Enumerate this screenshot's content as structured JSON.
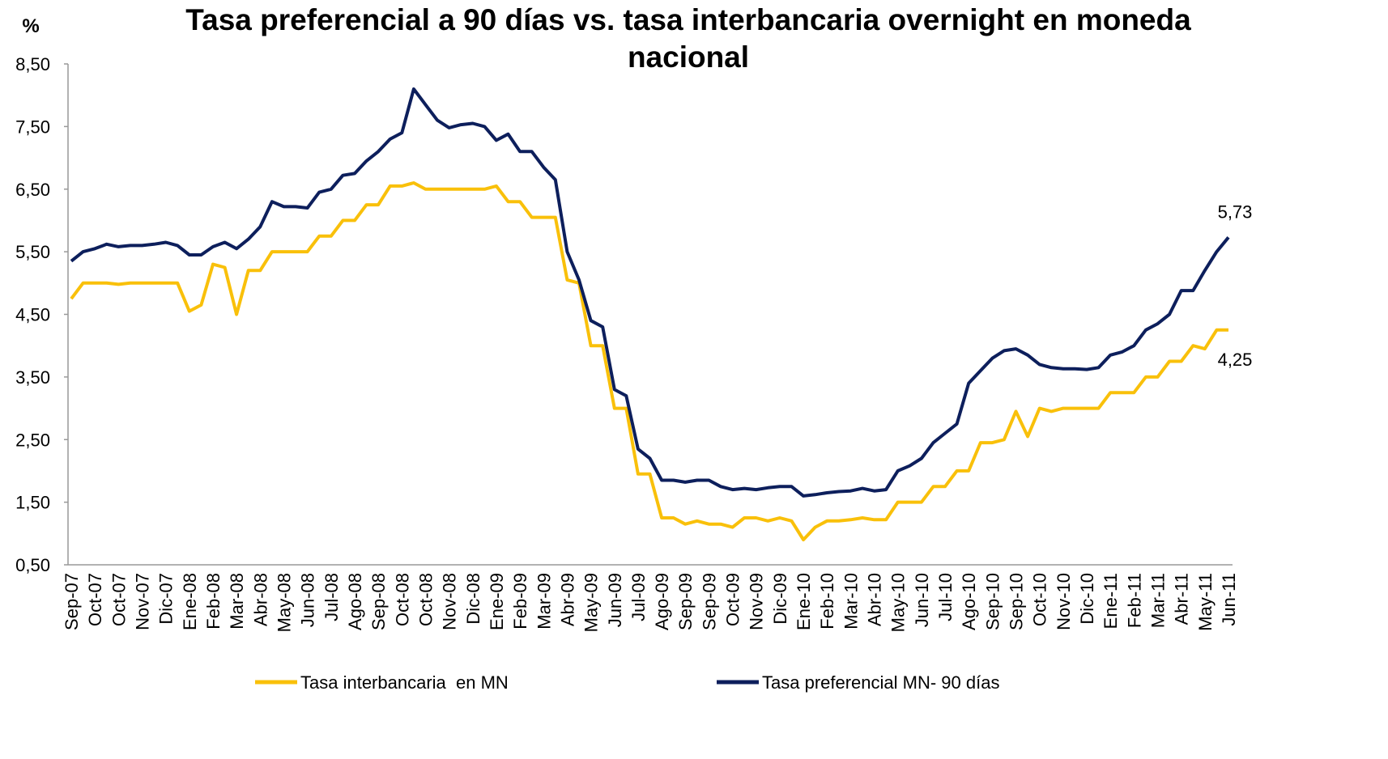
{
  "chart_data": {
    "type": "line",
    "title": "Tasa preferencial a 90 días vs. tasa interbancaria overnight en moneda nacional",
    "y_label": "%",
    "categories": [
      "Sep-07",
      null,
      "Oct-07",
      null,
      "Oct-07",
      null,
      "Nov-07",
      null,
      "Dic-07",
      null,
      "Ene-08",
      null,
      "Feb-08",
      null,
      "Mar-08",
      null,
      "Abr-08",
      null,
      "May-08",
      null,
      "Jun-08",
      null,
      "Jul-08",
      null,
      "Ago-08",
      null,
      "Sep-08",
      null,
      "Oct-08",
      null,
      "Oct-08",
      null,
      "Nov-08",
      null,
      "Dic-08",
      null,
      "Ene-09",
      null,
      "Feb-09",
      null,
      "Mar-09",
      null,
      "Abr-09",
      null,
      "May-09",
      null,
      "Jun-09",
      null,
      "Jul-09",
      null,
      "Ago-09",
      null,
      "Sep-09",
      null,
      "Sep-09",
      null,
      "Oct-09",
      null,
      "Nov-09",
      null,
      "Dic-09",
      null,
      "Ene-10",
      null,
      "Feb-10",
      null,
      "Mar-10",
      null,
      "Abr-10",
      null,
      "May-10",
      null,
      "Jun-10",
      null,
      "Jul-10",
      null,
      "Ago-10",
      null,
      "Sep-10",
      null,
      "Sep-10",
      null,
      "Oct-10",
      null,
      "Nov-10",
      null,
      "Dic-10",
      null,
      "Ene-11",
      null,
      "Feb-11",
      null,
      "Mar-11",
      null,
      "Abr-11",
      null,
      "May-11",
      null,
      "Jun-11"
    ],
    "series": [
      {
        "name": "Tasa interbancaria  en MN",
        "color": "#F9C00A",
        "values": [
          4.75,
          5.0,
          5.0,
          5.0,
          4.98,
          5.0,
          5.0,
          5.0,
          5.0,
          5.0,
          4.55,
          4.65,
          5.3,
          5.25,
          4.5,
          5.2,
          5.2,
          5.5,
          5.5,
          5.5,
          5.5,
          5.75,
          5.75,
          6.0,
          6.0,
          6.25,
          6.25,
          6.55,
          6.55,
          6.6,
          6.5,
          6.5,
          6.5,
          6.5,
          6.5,
          6.5,
          6.55,
          6.3,
          6.3,
          6.05,
          6.05,
          6.05,
          5.05,
          5.0,
          4.0,
          4.0,
          3.0,
          3.0,
          1.95,
          1.95,
          1.25,
          1.25,
          1.15,
          1.2,
          1.15,
          1.15,
          1.1,
          1.25,
          1.25,
          1.2,
          1.25,
          1.2,
          0.9,
          1.1,
          1.2,
          1.2,
          1.22,
          1.25,
          1.22,
          1.22,
          1.5,
          1.5,
          1.5,
          1.75,
          1.75,
          2.0,
          2.0,
          2.45,
          2.45,
          2.5,
          2.95,
          2.55,
          3.0,
          2.95,
          3.0,
          3.0,
          3.0,
          3.0,
          3.25,
          3.25,
          3.25,
          3.5,
          3.5,
          3.75,
          3.75,
          4.0,
          3.95,
          4.25,
          4.25
        ],
        "value_labels": [
          null,
          null,
          null,
          null,
          null,
          null,
          null,
          null,
          null,
          null,
          null,
          null,
          null,
          null,
          null,
          null,
          null,
          null,
          null,
          null,
          null,
          null,
          null,
          null,
          null,
          null,
          null,
          null,
          null,
          null,
          null,
          null,
          null,
          null,
          null,
          null,
          null,
          null,
          null,
          null,
          null,
          null,
          null,
          null,
          null,
          null,
          null,
          null,
          null,
          null,
          null,
          null,
          null,
          null,
          null,
          null,
          null,
          null,
          null,
          null,
          null,
          null,
          null,
          null,
          null,
          null,
          null,
          null,
          null,
          null,
          null,
          null,
          null,
          null,
          null,
          null,
          null,
          null,
          null,
          null,
          null,
          null,
          null,
          null,
          null,
          null,
          null,
          null,
          null,
          null,
          null,
          null,
          null,
          null,
          null,
          null,
          null,
          null,
          "4,25"
        ]
      },
      {
        "name": "Tasa preferencial MN- 90 días",
        "color": "#0D1F5C",
        "values": [
          5.35,
          5.5,
          5.55,
          5.62,
          5.58,
          5.6,
          5.6,
          5.62,
          5.65,
          5.6,
          5.45,
          5.45,
          5.58,
          5.65,
          5.55,
          5.7,
          5.9,
          6.3,
          6.22,
          6.22,
          6.2,
          6.45,
          6.5,
          6.72,
          6.75,
          6.95,
          7.1,
          7.3,
          7.4,
          8.1,
          7.85,
          7.6,
          7.48,
          7.53,
          7.55,
          7.5,
          7.28,
          7.38,
          7.1,
          7.1,
          6.85,
          6.65,
          5.5,
          5.05,
          4.4,
          4.3,
          3.3,
          3.2,
          2.35,
          2.2,
          1.85,
          1.85,
          1.82,
          1.85,
          1.85,
          1.75,
          1.7,
          1.72,
          1.7,
          1.73,
          1.75,
          1.75,
          1.6,
          1.62,
          1.65,
          1.67,
          1.68,
          1.72,
          1.68,
          1.7,
          2.0,
          2.08,
          2.2,
          2.45,
          2.6,
          2.75,
          3.4,
          3.6,
          3.8,
          3.92,
          3.95,
          3.85,
          3.7,
          3.65,
          3.63,
          3.63,
          3.62,
          3.65,
          3.85,
          3.9,
          4.0,
          4.25,
          4.35,
          4.5,
          4.88,
          4.88,
          5.2,
          5.5,
          5.73
        ],
        "value_labels": [
          null,
          null,
          null,
          null,
          null,
          null,
          null,
          null,
          null,
          null,
          null,
          null,
          null,
          null,
          null,
          null,
          null,
          null,
          null,
          null,
          null,
          null,
          null,
          null,
          null,
          null,
          null,
          null,
          null,
          null,
          null,
          null,
          null,
          null,
          null,
          null,
          null,
          null,
          null,
          null,
          null,
          null,
          null,
          null,
          null,
          null,
          null,
          null,
          null,
          null,
          null,
          null,
          null,
          null,
          null,
          null,
          null,
          null,
          null,
          null,
          null,
          null,
          null,
          null,
          null,
          null,
          null,
          null,
          null,
          null,
          null,
          null,
          null,
          null,
          null,
          null,
          null,
          null,
          null,
          null,
          null,
          null,
          null,
          null,
          null,
          null,
          null,
          null,
          null,
          null,
          null,
          null,
          null,
          null,
          null,
          null,
          null,
          null,
          "5,73"
        ]
      }
    ],
    "ylim": [
      0.5,
      8.5
    ],
    "yticks": [
      {
        "value": 0.5,
        "label": "0,50"
      },
      {
        "value": 1.5,
        "label": "1,50"
      },
      {
        "value": 2.5,
        "label": "2,50"
      },
      {
        "value": 3.5,
        "label": "3,50"
      },
      {
        "value": 4.5,
        "label": "4,50"
      },
      {
        "value": 5.5,
        "label": "5,50"
      },
      {
        "value": 6.5,
        "label": "6,50"
      },
      {
        "value": 7.5,
        "label": "7,50"
      },
      {
        "value": 8.5,
        "label": "8,50"
      }
    ],
    "grid": false,
    "legend": "bottom"
  }
}
